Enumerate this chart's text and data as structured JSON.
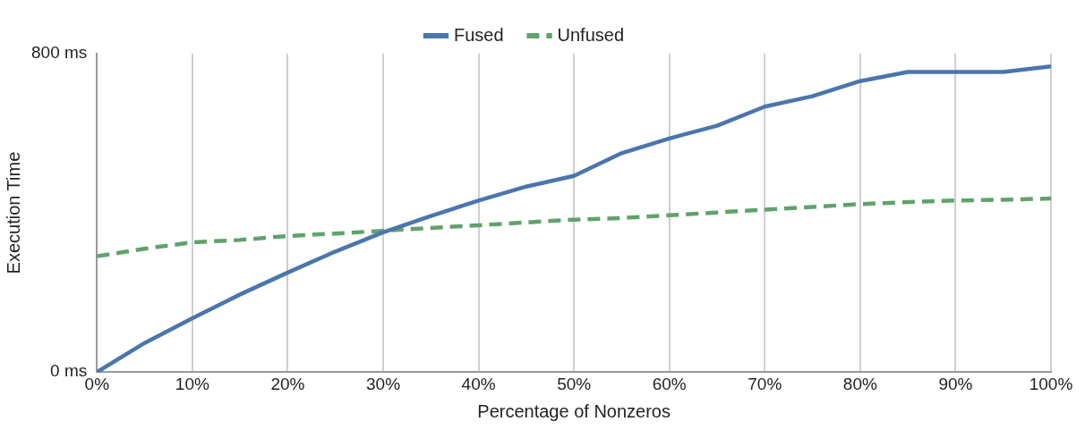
{
  "chart_data": {
    "type": "line",
    "xlabel": "Percentage of Nonzeros",
    "ylabel": "Execution Time",
    "x": [
      0,
      5,
      10,
      15,
      20,
      25,
      30,
      35,
      40,
      45,
      50,
      55,
      60,
      65,
      70,
      75,
      80,
      85,
      90,
      95,
      100
    ],
    "series": [
      {
        "name": "Fused",
        "color": "#4a76ad",
        "values": [
          0,
          73,
          135,
          195,
          250,
          303,
          351,
          392,
          431,
          466,
          493,
          550,
          587,
          619,
          667,
          693,
          731,
          754,
          754,
          754,
          768
        ]
      },
      {
        "name": "Unfused",
        "color": "#5fa36a",
        "line_style": "dashed",
        "values": [
          291,
          310,
          326,
          332,
          342,
          348,
          355,
          362,
          369,
          376,
          383,
          387,
          394,
          401,
          408,
          415,
          422,
          427,
          431,
          433,
          436
        ]
      }
    ],
    "xlim": [
      0,
      100
    ],
    "xticks": [
      {
        "value": 0,
        "label": "0%"
      },
      {
        "value": 10,
        "label": "10%"
      },
      {
        "value": 20,
        "label": "20%"
      },
      {
        "value": 30,
        "label": "30%"
      },
      {
        "value": 40,
        "label": "40%"
      },
      {
        "value": 50,
        "label": "50%"
      },
      {
        "value": 60,
        "label": "60%"
      },
      {
        "value": 70,
        "label": "70%"
      },
      {
        "value": 80,
        "label": "80%"
      },
      {
        "value": 90,
        "label": "90%"
      },
      {
        "value": 100,
        "label": "100%"
      }
    ],
    "ylim": [
      0,
      800
    ],
    "yticks": [
      {
        "value": 0,
        "label": "0 ms"
      },
      {
        "value": 800,
        "label": "800 ms"
      }
    ],
    "grid": "x",
    "legend": "top",
    "marker": "none",
    "line_style": "solid"
  }
}
